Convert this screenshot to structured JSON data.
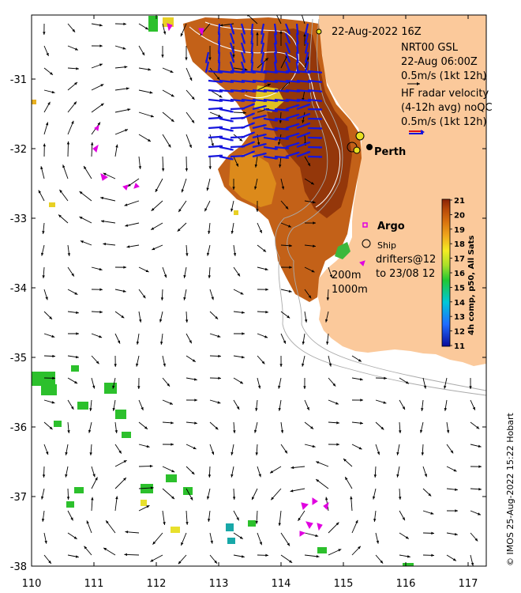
{
  "map": {
    "date_label": "22-Aug-2022 16Z",
    "model_label": "NRT00 GSL",
    "model_time": "22-Aug 06:00Z",
    "vector_scale_label": "0.5m/s (1kt 12h)",
    "radar_line1": "HF radar velocity",
    "radar_line2": "(4-12h avg) noQC",
    "radar_scale_label": "0.5m/s (1kt 12h)",
    "city_label": "Perth",
    "argo_label": "Argo",
    "ship_label": "Ship",
    "drifters_line1": "drifters@12",
    "drifters_line2": "to 23/08 12",
    "depth_200": "200m",
    "depth_1000": "1000m",
    "colorbar_title": "4h comp, p50, All Sats",
    "colorbar_ticks": [
      "21",
      "20",
      "19",
      "18",
      "17",
      "16",
      "15",
      "14",
      "13",
      "12",
      "11"
    ],
    "credit": "© IMOS 25-Aug-2022 15:22 Hobart",
    "x_ticks": [
      "110",
      "111",
      "112",
      "113",
      "114",
      "115",
      "116",
      "117"
    ],
    "y_ticks": [
      "-31",
      "-32",
      "-33",
      "-34",
      "-35",
      "-36",
      "-37",
      "-38"
    ],
    "colors": {
      "land": "#fbc99b",
      "radar_vectors": "#1515dd",
      "model_vectors": "#000000",
      "argo": "#e000e0"
    }
  }
}
